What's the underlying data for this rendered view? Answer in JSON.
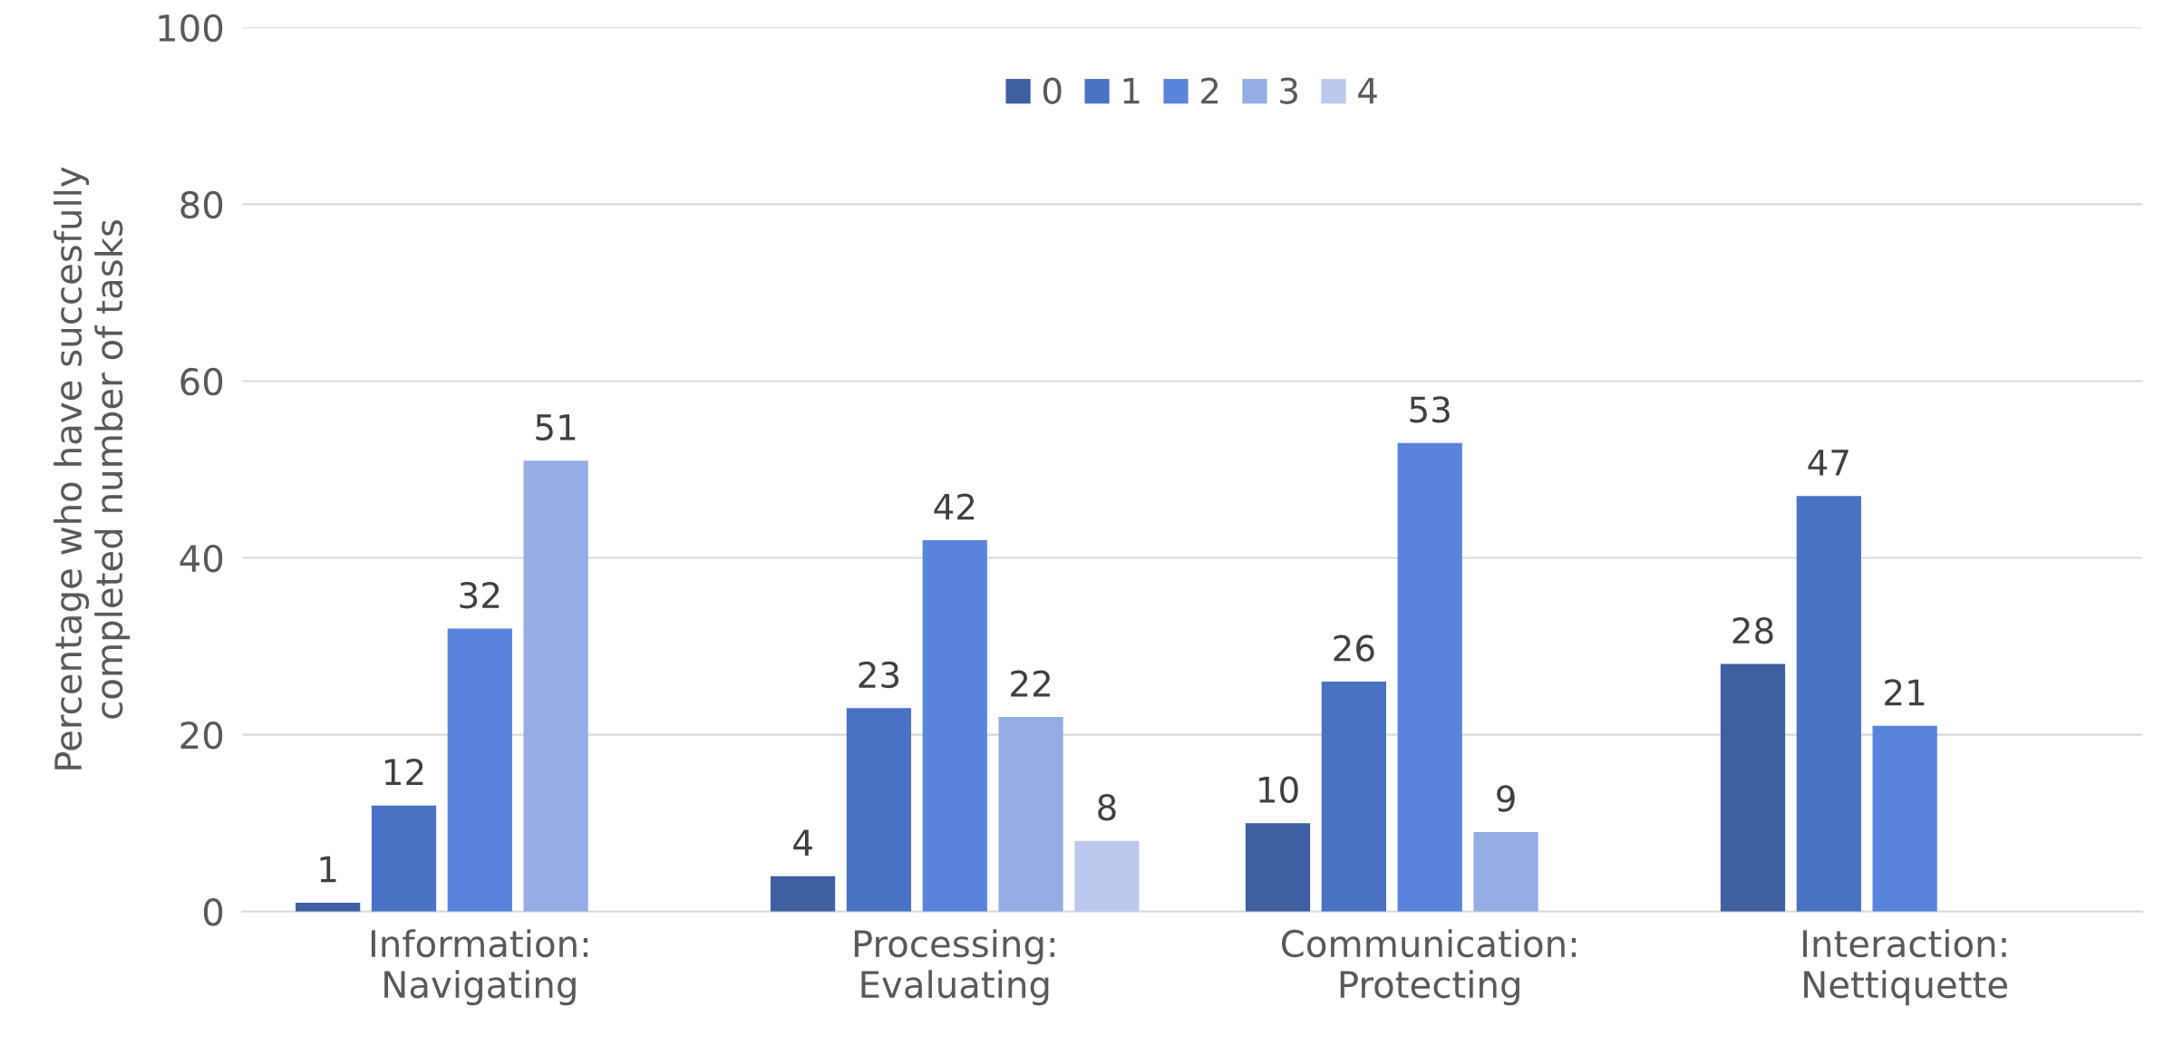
{
  "chart_data": {
    "type": "bar",
    "ylabel": "Percentage who have succesfully\ncompleted number of tasks",
    "categories": [
      "Information:\nNavigating",
      "Processing:\nEvaluating",
      "Communication:\nProtecting",
      "Interaction:\nNettiquette"
    ],
    "series": [
      {
        "name": "0",
        "color": "#3f5fa3",
        "values": [
          1,
          4,
          10,
          28
        ]
      },
      {
        "name": "1",
        "color": "#4a72c4",
        "values": [
          12,
          23,
          26,
          47
        ]
      },
      {
        "name": "2",
        "color": "#5a84dc",
        "values": [
          32,
          42,
          53,
          21
        ]
      },
      {
        "name": "3",
        "color": "#95ade4",
        "values": [
          51,
          22,
          9,
          null
        ]
      },
      {
        "name": "4",
        "color": "#bcc8ee",
        "values": [
          null,
          8,
          null,
          null
        ]
      }
    ],
    "ylim": [
      0,
      100
    ],
    "yticks": [
      0,
      20,
      40,
      60,
      80,
      100
    ],
    "grid": "y",
    "legend": "top",
    "data_labels": true
  }
}
